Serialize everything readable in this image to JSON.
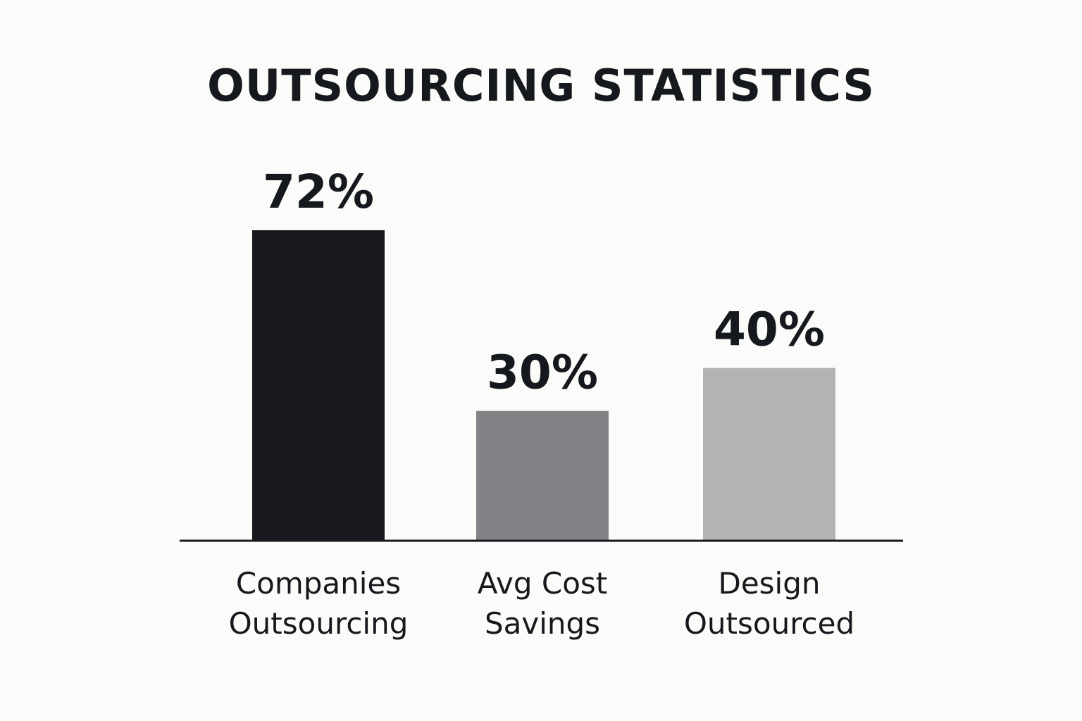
{
  "chart_data": {
    "type": "bar",
    "title": "OUTSOURCING STATISTICS",
    "categories": [
      [
        "Companies",
        "Outsourcing"
      ],
      [
        "Avg Cost",
        "Savings"
      ],
      [
        "Design",
        "Outsourced"
      ]
    ],
    "values": [
      72,
      30,
      40
    ],
    "value_labels": [
      "72%",
      "30%",
      "40%"
    ],
    "colors": [
      "#17191e",
      "#838287",
      "#b3b3b6"
    ],
    "axis_color": "#15181d",
    "ylim": [
      0,
      72
    ],
    "grid": false,
    "legend": "none"
  }
}
